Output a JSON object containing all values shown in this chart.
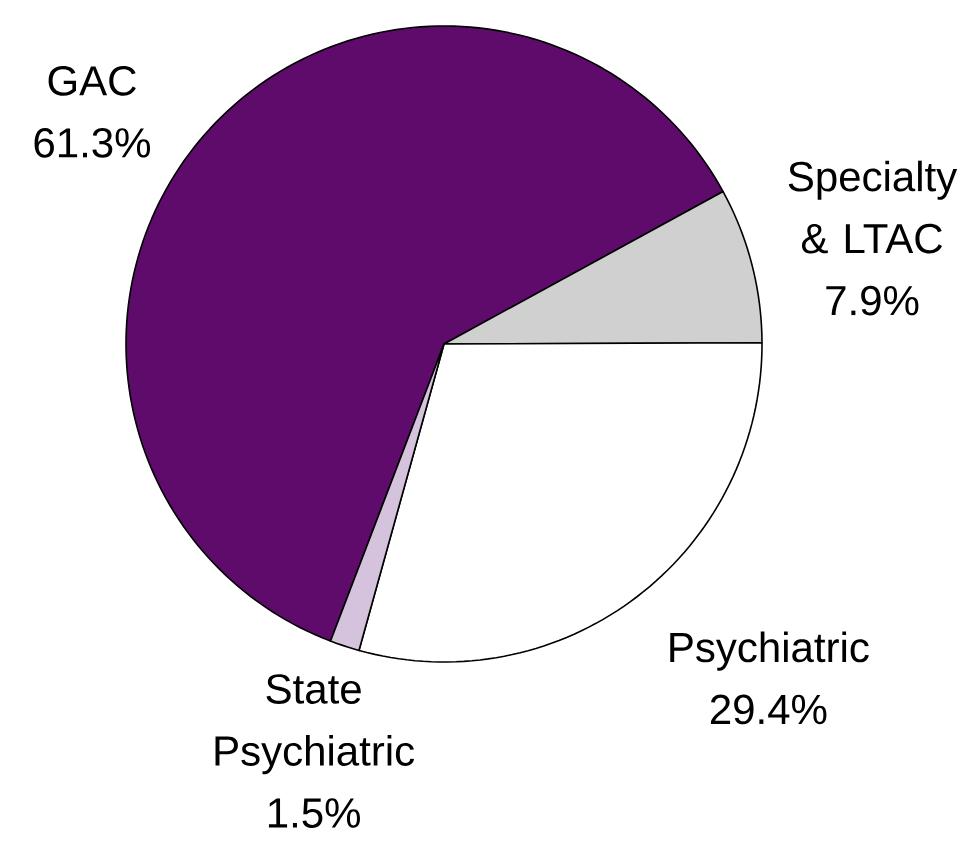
{
  "chart_data": {
    "type": "pie",
    "categories": [
      "GAC",
      "Specialty & LTAC",
      "Psychiatric",
      "State Psychiatric"
    ],
    "values": [
      61.3,
      7.9,
      29.4,
      1.5
    ],
    "colors": [
      "#5e0b6b",
      "#d0d0d0",
      "#ffffff",
      "#d5c3dd"
    ],
    "value_labels": [
      "61.3%",
      "7.9%",
      "29.4%",
      "1.5%"
    ]
  }
}
